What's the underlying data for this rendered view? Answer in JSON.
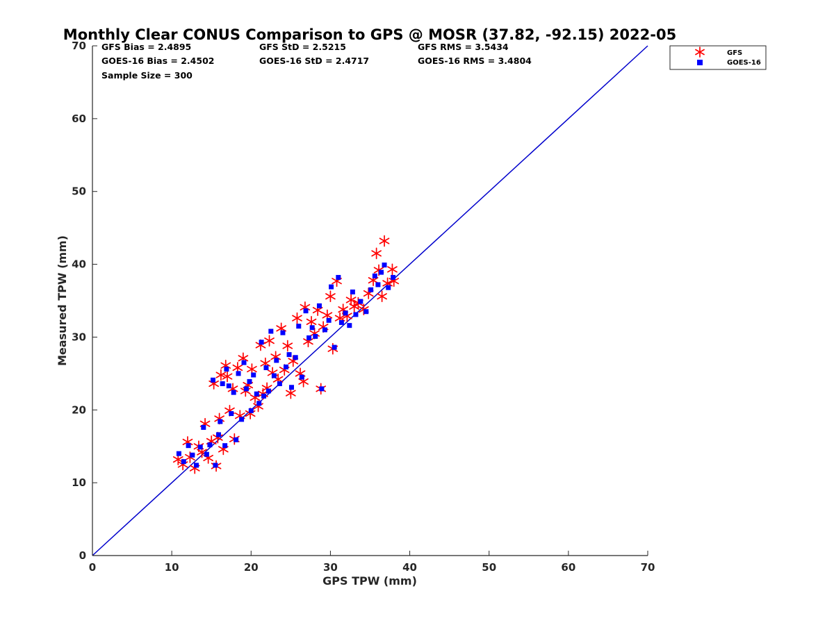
{
  "chart_data": {
    "type": "scatter",
    "title": "Monthly Clear CONUS Comparison to GPS @ MOSR (37.82, -92.15) 2022-05",
    "xlabel": "GPS TPW (mm)",
    "ylabel": "Measured TPW (mm)",
    "xlim": [
      0,
      70
    ],
    "ylim": [
      0,
      70
    ],
    "xticks": [
      "0",
      "10",
      "20",
      "30",
      "40",
      "50",
      "60",
      "70"
    ],
    "yticks": [
      "0",
      "10",
      "20",
      "30",
      "40",
      "50",
      "60",
      "70"
    ],
    "grid": false,
    "legend_position": "top-right",
    "stats": {
      "gfs_bias": "GFS Bias = 2.4895",
      "goes_bias": "GOES-16 Bias = 2.4502",
      "sample_size": "Sample Size = 300",
      "gfs_std": "GFS StD = 2.5215",
      "goes_std": "GOES-16 StD = 2.4717",
      "gfs_rms": "GFS RMS = 3.5434",
      "goes_rms": "GOES-16 RMS = 3.4804"
    },
    "reference_line": {
      "x": [
        0,
        70
      ],
      "y": [
        0,
        70
      ],
      "color": "#0000cc"
    },
    "series": [
      {
        "name": "GFS",
        "marker": "asterisk",
        "color": "#ff0000",
        "points": [
          [
            10.8,
            13.2
          ],
          [
            11.4,
            12.5
          ],
          [
            12.0,
            15.6
          ],
          [
            12.3,
            13.5
          ],
          [
            12.9,
            12.0
          ],
          [
            13.4,
            15.0
          ],
          [
            13.8,
            14.2
          ],
          [
            14.2,
            18.1
          ],
          [
            14.6,
            13.4
          ],
          [
            15.0,
            15.7
          ],
          [
            15.3,
            23.6
          ],
          [
            15.6,
            12.3
          ],
          [
            15.8,
            16.2
          ],
          [
            16.0,
            18.8
          ],
          [
            16.2,
            24.8
          ],
          [
            16.5,
            14.6
          ],
          [
            16.8,
            26.1
          ],
          [
            17.0,
            24.6
          ],
          [
            17.3,
            19.9
          ],
          [
            17.7,
            22.9
          ],
          [
            17.9,
            16.0
          ],
          [
            18.3,
            25.8
          ],
          [
            18.6,
            19.2
          ],
          [
            19.0,
            27.1
          ],
          [
            19.3,
            22.6
          ],
          [
            19.6,
            23.4
          ],
          [
            19.9,
            19.5
          ],
          [
            20.1,
            25.6
          ],
          [
            20.5,
            21.7
          ],
          [
            20.9,
            20.5
          ],
          [
            21.2,
            28.9
          ],
          [
            21.5,
            22.2
          ],
          [
            21.8,
            26.4
          ],
          [
            22.0,
            23.0
          ],
          [
            22.3,
            29.5
          ],
          [
            22.7,
            25.1
          ],
          [
            23.1,
            27.3
          ],
          [
            23.4,
            24.2
          ],
          [
            23.8,
            31.2
          ],
          [
            24.2,
            25.5
          ],
          [
            24.6,
            28.8
          ],
          [
            25.0,
            22.3
          ],
          [
            25.3,
            26.7
          ],
          [
            25.8,
            32.6
          ],
          [
            26.2,
            25.0
          ],
          [
            26.6,
            23.9
          ],
          [
            26.8,
            34.1
          ],
          [
            27.2,
            29.4
          ],
          [
            27.6,
            32.1
          ],
          [
            28.0,
            30.5
          ],
          [
            28.4,
            33.7
          ],
          [
            28.8,
            22.9
          ],
          [
            29.1,
            31.4
          ],
          [
            29.6,
            33.0
          ],
          [
            30.0,
            35.6
          ],
          [
            30.3,
            28.4
          ],
          [
            30.8,
            37.7
          ],
          [
            31.2,
            32.6
          ],
          [
            31.6,
            33.8
          ],
          [
            32.1,
            32.9
          ],
          [
            32.6,
            35.1
          ],
          [
            33.0,
            34.2
          ],
          [
            33.5,
            34.7
          ],
          [
            34.2,
            33.8
          ],
          [
            34.8,
            36.0
          ],
          [
            35.4,
            37.8
          ],
          [
            35.8,
            41.5
          ],
          [
            36.1,
            39.2
          ],
          [
            36.5,
            35.6
          ],
          [
            36.8,
            43.2
          ],
          [
            37.2,
            37.4
          ],
          [
            37.8,
            39.3
          ],
          [
            38.0,
            37.7
          ]
        ]
      },
      {
        "name": "GOES-16",
        "marker": "square",
        "color": "#0000ff",
        "points": [
          [
            10.9,
            14.0
          ],
          [
            11.5,
            12.9
          ],
          [
            12.1,
            15.1
          ],
          [
            12.6,
            13.8
          ],
          [
            13.1,
            12.4
          ],
          [
            13.6,
            14.9
          ],
          [
            14.0,
            17.6
          ],
          [
            14.4,
            13.9
          ],
          [
            14.8,
            15.2
          ],
          [
            15.2,
            24.1
          ],
          [
            15.5,
            12.4
          ],
          [
            15.9,
            16.6
          ],
          [
            16.1,
            18.4
          ],
          [
            16.4,
            23.6
          ],
          [
            16.7,
            15.1
          ],
          [
            16.9,
            25.6
          ],
          [
            17.2,
            23.3
          ],
          [
            17.5,
            19.5
          ],
          [
            17.8,
            22.4
          ],
          [
            18.1,
            15.9
          ],
          [
            18.4,
            25.0
          ],
          [
            18.8,
            18.7
          ],
          [
            19.1,
            26.5
          ],
          [
            19.4,
            22.9
          ],
          [
            19.8,
            23.9
          ],
          [
            20.0,
            19.9
          ],
          [
            20.3,
            24.8
          ],
          [
            20.7,
            22.2
          ],
          [
            21.0,
            20.9
          ],
          [
            21.3,
            29.3
          ],
          [
            21.6,
            21.9
          ],
          [
            21.9,
            25.8
          ],
          [
            22.2,
            22.6
          ],
          [
            22.5,
            30.8
          ],
          [
            22.9,
            24.7
          ],
          [
            23.2,
            26.8
          ],
          [
            23.6,
            23.6
          ],
          [
            24.0,
            30.6
          ],
          [
            24.4,
            25.9
          ],
          [
            24.8,
            27.6
          ],
          [
            25.1,
            23.1
          ],
          [
            25.6,
            27.2
          ],
          [
            26.0,
            31.5
          ],
          [
            26.4,
            24.5
          ],
          [
            26.9,
            33.6
          ],
          [
            27.3,
            29.9
          ],
          [
            27.7,
            31.3
          ],
          [
            28.1,
            30.1
          ],
          [
            28.6,
            34.3
          ],
          [
            28.9,
            22.9
          ],
          [
            29.3,
            31.0
          ],
          [
            29.8,
            32.3
          ],
          [
            30.1,
            36.9
          ],
          [
            30.5,
            28.6
          ],
          [
            31.0,
            38.2
          ],
          [
            31.4,
            32.0
          ],
          [
            31.9,
            33.3
          ],
          [
            32.4,
            31.6
          ],
          [
            32.8,
            36.2
          ],
          [
            33.2,
            33.1
          ],
          [
            33.8,
            34.9
          ],
          [
            34.5,
            33.5
          ],
          [
            35.1,
            36.5
          ],
          [
            35.6,
            38.4
          ],
          [
            36.0,
            37.2
          ],
          [
            36.4,
            38.9
          ],
          [
            36.8,
            39.9
          ],
          [
            37.3,
            36.8
          ],
          [
            37.9,
            38.2
          ]
        ]
      }
    ]
  }
}
